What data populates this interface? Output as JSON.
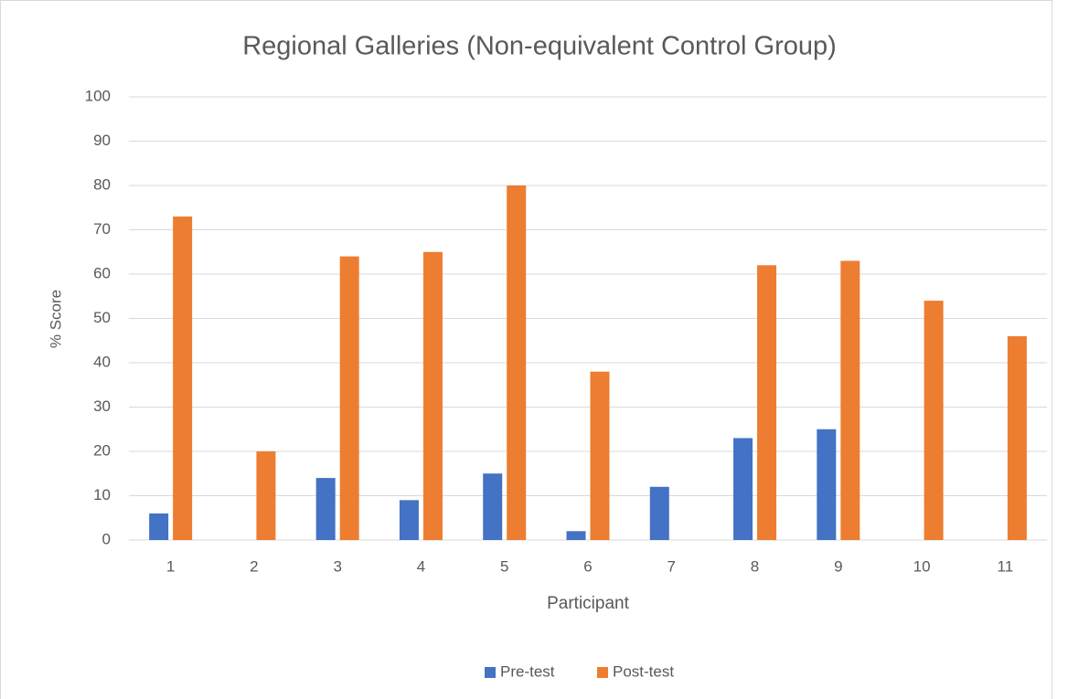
{
  "chart_data": {
    "type": "bar",
    "title": "Regional Galleries (Non-equivalent Control Group)",
    "x_label": "Participant",
    "y_label": "% Score",
    "categories": [
      "1",
      "2",
      "3",
      "4",
      "5",
      "6",
      "7",
      "8",
      "9",
      "10",
      "11"
    ],
    "series": [
      {
        "name": "Pre-test",
        "color": "#4472c4",
        "values": [
          6,
          0,
          14,
          9,
          15,
          2,
          12,
          23,
          25,
          0,
          0
        ]
      },
      {
        "name": "Post-test",
        "color": "#ed7d31",
        "values": [
          73,
          20,
          64,
          65,
          80,
          38,
          0,
          62,
          63,
          54,
          46
        ]
      }
    ],
    "ylim": [
      0,
      100
    ],
    "yticks": [
      0,
      10,
      20,
      30,
      40,
      50,
      60,
      70,
      80,
      90,
      100
    ],
    "grid": true,
    "legend": "bottom"
  }
}
